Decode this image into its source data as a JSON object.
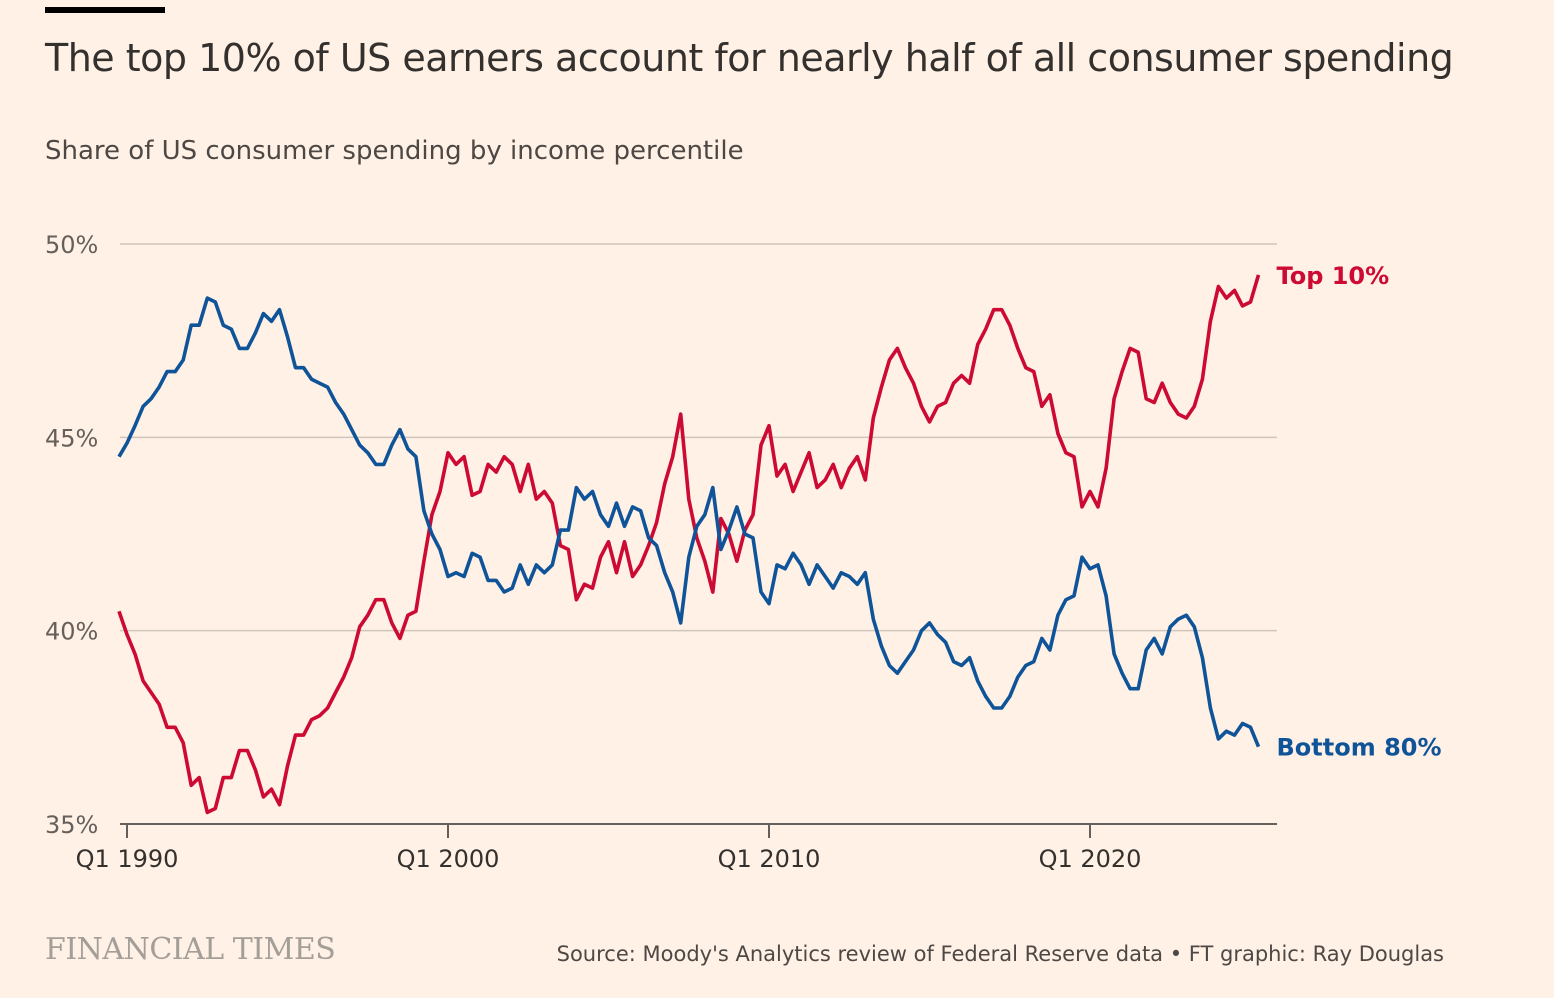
{
  "title": "The top 10% of US earners account for nearly half of all consumer spending",
  "subtitle": "Share of US consumer spending by income percentile",
  "logo": "FINANCIAL TIMES",
  "source": "Source: Moody's Analytics review of Federal Reserve data • FT graphic: Ray Douglas",
  "chart_data": {
    "type": "line",
    "title": "The top 10% of US earners account for nearly half of all consumer spending",
    "subtitle": "Share of US consumer spending by income percentile",
    "xlabel": "",
    "ylabel": "",
    "x_start": 1989.75,
    "x_end": 2025.25,
    "x_step_label": "quarterly",
    "xlim": [
      1989.5,
      2025.75
    ],
    "ylim": [
      35,
      50
    ],
    "yticks": [
      {
        "value": 50,
        "label": "50%"
      },
      {
        "value": 45,
        "label": "45%"
      },
      {
        "value": 40,
        "label": "40%"
      },
      {
        "value": 35,
        "label": "35%"
      }
    ],
    "xticks": [
      {
        "value": 1990,
        "label": "Q1 1990"
      },
      {
        "value": 2000,
        "label": "Q1 2000"
      },
      {
        "value": 2010,
        "label": "Q1 2010"
      },
      {
        "value": 2020,
        "label": "Q1 2020"
      }
    ],
    "grid": true,
    "legend": "direct labels at line ends (right)",
    "series": [
      {
        "name": "Top 10%",
        "color": "#cc0a33",
        "values": [
          40.5,
          39.9,
          39.4,
          38.7,
          38.4,
          38.1,
          37.5,
          37.5,
          37.1,
          36.0,
          36.2,
          35.3,
          35.4,
          36.2,
          36.2,
          36.9,
          36.9,
          36.4,
          35.7,
          35.9,
          35.5,
          36.5,
          37.3,
          37.3,
          37.7,
          37.8,
          38.0,
          38.4,
          38.8,
          39.3,
          40.1,
          40.4,
          40.8,
          40.8,
          40.2,
          39.8,
          40.4,
          40.5,
          41.8,
          43.0,
          43.6,
          44.6,
          44.3,
          44.5,
          43.5,
          43.6,
          44.3,
          44.1,
          44.5,
          44.3,
          43.6,
          44.3,
          43.4,
          43.6,
          43.3,
          42.2,
          42.1,
          40.8,
          41.2,
          41.1,
          41.9,
          42.3,
          41.5,
          42.3,
          41.4,
          41.7,
          42.2,
          42.8,
          43.8,
          44.5,
          45.6,
          43.4,
          42.4,
          41.8,
          41.0,
          42.9,
          42.5,
          41.8,
          42.6,
          43.0,
          44.8,
          45.3,
          44.0,
          44.3,
          43.6,
          44.1,
          44.6,
          43.7,
          43.9,
          44.3,
          43.7,
          44.2,
          44.5,
          43.9,
          45.5,
          46.3,
          47.0,
          47.3,
          46.8,
          46.4,
          45.8,
          45.4,
          45.8,
          45.9,
          46.4,
          46.6,
          46.4,
          47.4,
          47.8,
          48.3,
          48.3,
          47.9,
          47.3,
          46.8,
          46.7,
          45.8,
          46.1,
          45.1,
          44.6,
          44.5,
          43.2,
          43.6,
          43.2,
          44.2,
          46.0,
          46.7,
          47.3,
          47.2,
          46.0,
          45.9,
          46.4,
          45.9,
          45.6,
          45.5,
          45.8,
          46.5,
          48.0,
          48.9,
          48.6,
          48.8,
          48.4,
          48.5,
          49.2
        ]
      },
      {
        "name": "Bottom 80%",
        "color": "#0f5499",
        "values": [
          44.5,
          44.85,
          45.3,
          45.8,
          46.0,
          46.3,
          46.7,
          46.7,
          47.0,
          47.9,
          47.9,
          48.6,
          48.5,
          47.9,
          47.8,
          47.3,
          47.3,
          47.7,
          48.2,
          48.0,
          48.3,
          47.6,
          46.8,
          46.8,
          46.5,
          46.4,
          46.3,
          45.9,
          45.6,
          45.2,
          44.8,
          44.6,
          44.3,
          44.3,
          44.8,
          45.2,
          44.7,
          44.5,
          43.1,
          42.5,
          42.1,
          41.4,
          41.5,
          41.4,
          42.0,
          41.9,
          41.3,
          41.3,
          41.0,
          41.1,
          41.7,
          41.2,
          41.7,
          41.5,
          41.7,
          42.6,
          42.6,
          43.7,
          43.4,
          43.6,
          43.0,
          42.7,
          43.3,
          42.7,
          43.2,
          43.1,
          42.4,
          42.2,
          41.5,
          41.0,
          40.2,
          41.9,
          42.7,
          43.0,
          43.7,
          42.1,
          42.6,
          43.2,
          42.5,
          42.4,
          41.0,
          40.7,
          41.7,
          41.6,
          42.0,
          41.7,
          41.2,
          41.7,
          41.4,
          41.1,
          41.5,
          41.4,
          41.2,
          41.5,
          40.3,
          39.6,
          39.1,
          38.9,
          39.2,
          39.5,
          40.0,
          40.2,
          39.9,
          39.7,
          39.2,
          39.1,
          39.3,
          38.7,
          38.3,
          38.0,
          38.0,
          38.3,
          38.8,
          39.1,
          39.2,
          39.8,
          39.5,
          40.4,
          40.8,
          40.9,
          41.9,
          41.6,
          41.7,
          40.9,
          39.4,
          38.9,
          38.5,
          38.5,
          39.5,
          39.8,
          39.4,
          40.1,
          40.3,
          40.4,
          40.1,
          39.3,
          38.0,
          37.2,
          37.4,
          37.3,
          37.6,
          37.5,
          37.0
        ]
      }
    ]
  }
}
